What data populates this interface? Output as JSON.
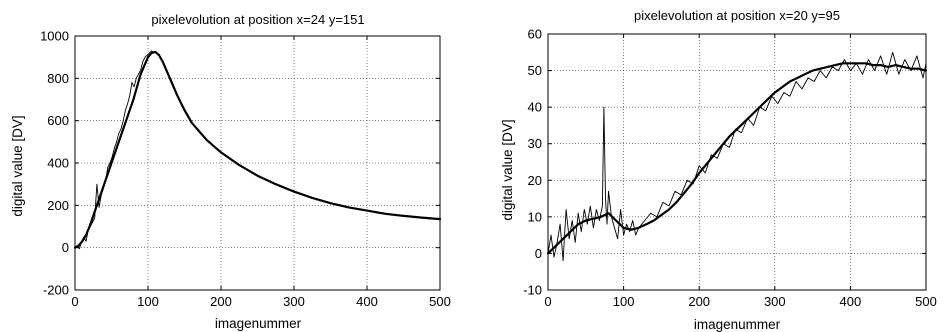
{
  "chart_data": [
    {
      "type": "line",
      "title": "pixelevolution at position x=24 y=151",
      "xlabel": "imagenummer",
      "ylabel": "digital value [DV]",
      "xlim": [
        0,
        500
      ],
      "ylim": [
        -200,
        1000
      ],
      "xticks": [
        0,
        100,
        200,
        300,
        400,
        500
      ],
      "yticks": [
        -200,
        0,
        200,
        400,
        600,
        800,
        1000
      ],
      "xtick_labels": [
        "0",
        "100",
        "200",
        "300",
        "400",
        "500"
      ],
      "ytick_labels": [
        "-200",
        "0",
        "200",
        "400",
        "600",
        "800",
        "1000"
      ],
      "grid": true,
      "series": [
        {
          "style": "thin-raw",
          "x": [
            0,
            3,
            6,
            9,
            12,
            15,
            18,
            21,
            24,
            27,
            30,
            33,
            36,
            39,
            42,
            45,
            48,
            51,
            54,
            57,
            60,
            63,
            66,
            69,
            72,
            75,
            78,
            81,
            84,
            87,
            90,
            93,
            96,
            99,
            102,
            105,
            108
          ],
          "y": [
            0,
            10,
            -5,
            30,
            50,
            30,
            80,
            100,
            120,
            140,
            300,
            190,
            250,
            280,
            320,
            380,
            400,
            430,
            470,
            500,
            540,
            560,
            600,
            650,
            680,
            720,
            780,
            760,
            800,
            820,
            840,
            880,
            900,
            910,
            920,
            930,
            920
          ]
        },
        {
          "style": "thick-smooth",
          "x": [
            0,
            5,
            10,
            15,
            20,
            30,
            40,
            50,
            60,
            70,
            80,
            90,
            100,
            105,
            110,
            115,
            120,
            130,
            140,
            150,
            160,
            180,
            200,
            225,
            250,
            275,
            300,
            325,
            350,
            375,
            400,
            425,
            450,
            475,
            500
          ],
          "y": [
            0,
            10,
            30,
            60,
            100,
            200,
            300,
            400,
            500,
            600,
            700,
            820,
            900,
            920,
            925,
            910,
            880,
            800,
            720,
            650,
            590,
            510,
            450,
            390,
            340,
            300,
            265,
            235,
            210,
            190,
            175,
            160,
            150,
            142,
            135
          ]
        }
      ]
    },
    {
      "type": "line",
      "title": "pixelevolution at position x=20 y=95",
      "xlabel": "imagenummer",
      "ylabel": "digital value [DV]",
      "xlim": [
        0,
        500
      ],
      "ylim": [
        -10,
        60
      ],
      "xticks": [
        0,
        100,
        200,
        300,
        400,
        500
      ],
      "yticks": [
        -10,
        0,
        10,
        20,
        30,
        40,
        50,
        60
      ],
      "xtick_labels": [
        "0",
        "100",
        "200",
        "300",
        "400",
        "500"
      ],
      "ytick_labels": [
        "-10",
        "0",
        "10",
        "20",
        "30",
        "40",
        "50",
        "60"
      ],
      "grid": true,
      "series": [
        {
          "style": "thin-raw",
          "x": [
            0,
            4,
            8,
            12,
            16,
            20,
            24,
            28,
            32,
            36,
            40,
            44,
            48,
            52,
            56,
            60,
            64,
            68,
            72,
            74,
            76,
            78,
            80,
            84,
            88,
            92,
            96,
            100,
            104,
            108,
            112,
            116,
            120,
            128,
            136,
            144,
            152,
            160,
            168,
            176,
            184,
            192,
            200,
            208,
            216,
            224,
            232,
            240,
            248,
            256,
            264,
            272,
            280,
            288,
            296,
            304,
            312,
            320,
            328,
            336,
            344,
            352,
            360,
            368,
            376,
            384,
            392,
            400,
            408,
            416,
            424,
            432,
            440,
            448,
            456,
            464,
            472,
            480,
            488,
            496,
            500
          ],
          "y": [
            0,
            5,
            -1,
            3,
            8,
            -2,
            12,
            4,
            9,
            3,
            11,
            6,
            12,
            8,
            13,
            7,
            12,
            9,
            13,
            40,
            15,
            8,
            17,
            10,
            7,
            4,
            12,
            5,
            8,
            6,
            9,
            5,
            7,
            9,
            11,
            10,
            14,
            13,
            17,
            16,
            20,
            19,
            24,
            22,
            27,
            26,
            30,
            29,
            34,
            33,
            37,
            35,
            40,
            39,
            43,
            41,
            44,
            43,
            47,
            45,
            48,
            47,
            50,
            48,
            51,
            50,
            53,
            50,
            52,
            49,
            53,
            50,
            54,
            49,
            55,
            49,
            53,
            50,
            54,
            48,
            52
          ]
        },
        {
          "style": "thick-smooth",
          "x": [
            0,
            10,
            20,
            30,
            40,
            50,
            60,
            70,
            80,
            90,
            100,
            110,
            120,
            130,
            140,
            150,
            160,
            170,
            180,
            190,
            200,
            210,
            220,
            230,
            240,
            250,
            260,
            270,
            280,
            290,
            300,
            310,
            320,
            330,
            340,
            350,
            360,
            370,
            380,
            390,
            400,
            410,
            420,
            430,
            440,
            450,
            460,
            470,
            480,
            490,
            500
          ],
          "y": [
            0,
            2,
            4,
            6,
            8,
            9,
            9.5,
            10,
            11,
            9,
            7,
            6.5,
            7,
            8,
            9,
            10.5,
            12,
            14,
            16.5,
            19,
            22,
            24.5,
            27,
            29.5,
            32,
            34,
            36,
            38,
            40,
            42,
            44,
            45.5,
            47,
            48,
            49,
            50,
            50.5,
            51,
            51.5,
            52,
            52,
            52,
            52,
            51.5,
            51.5,
            51,
            51.5,
            51,
            50.5,
            50.5,
            50
          ]
        }
      ]
    }
  ]
}
